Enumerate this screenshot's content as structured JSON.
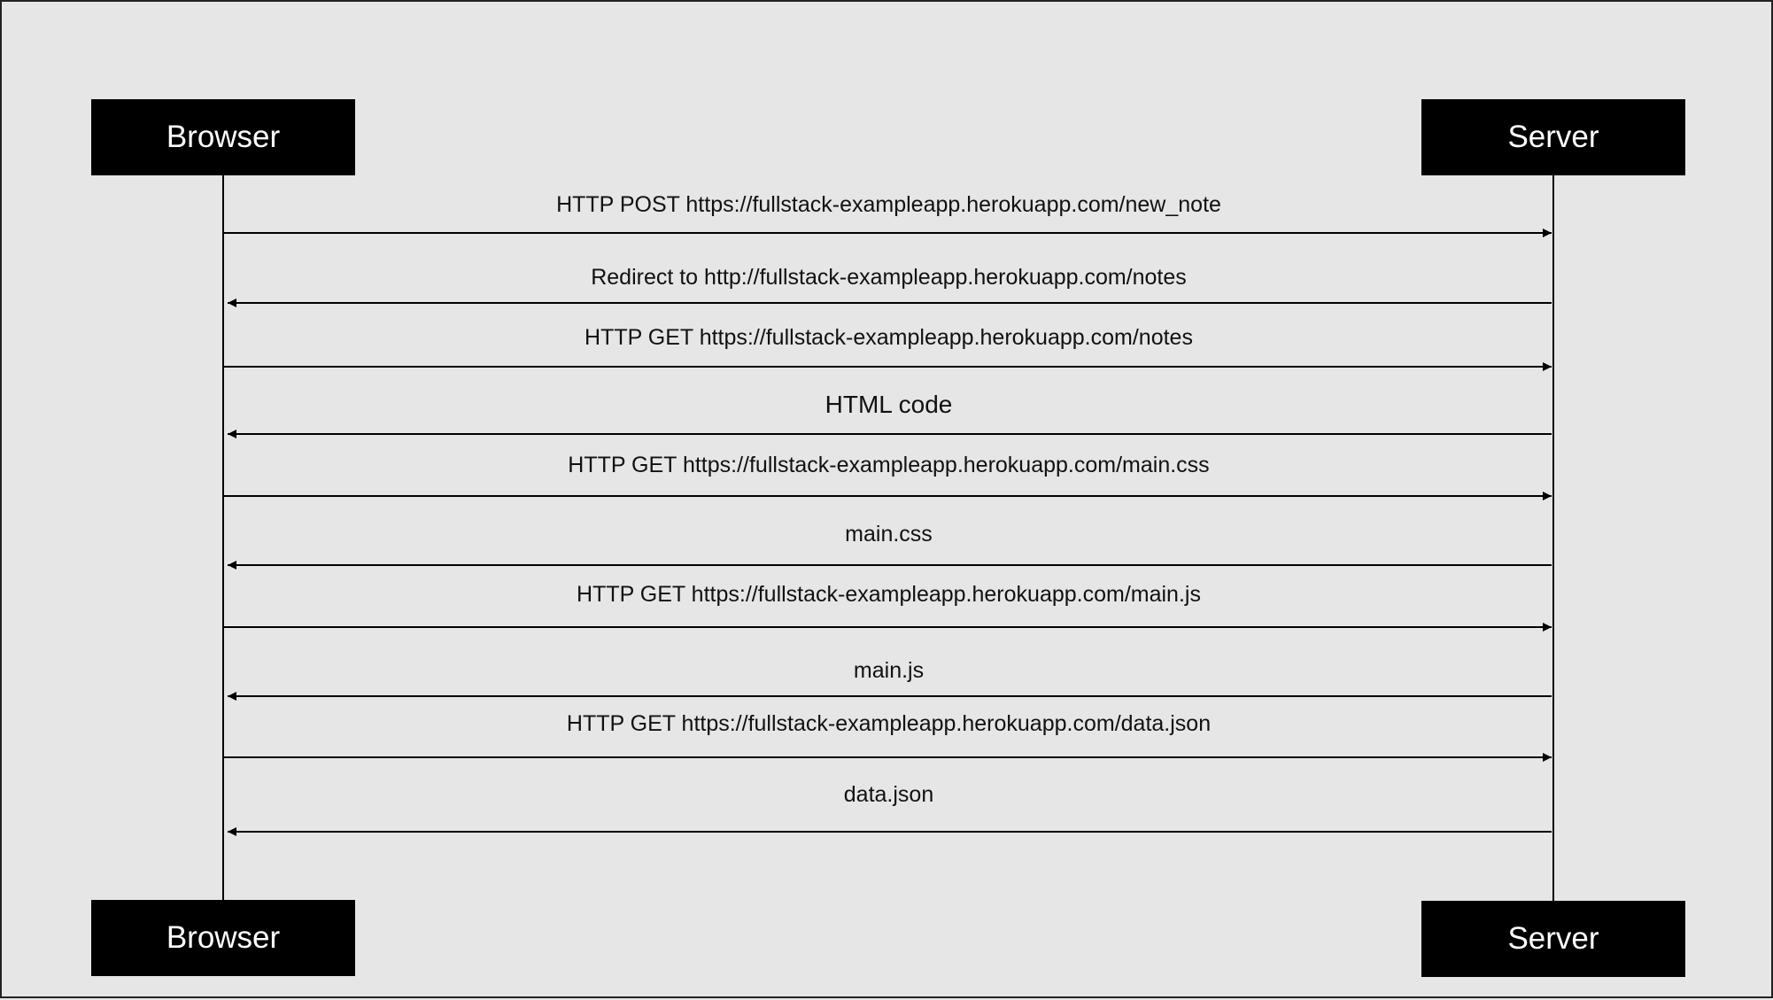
{
  "participants": {
    "left": "Browser",
    "right": "Server"
  },
  "messages": [
    {
      "label": "HTTP POST https://fullstack-exampleapp.herokuapp.com/new_note",
      "direction": "to-server"
    },
    {
      "label": "Redirect to http://fullstack-exampleapp.herokuapp.com/notes",
      "direction": "to-browser"
    },
    {
      "label": "HTTP GET https://fullstack-exampleapp.herokuapp.com/notes",
      "direction": "to-server"
    },
    {
      "label": "HTML code",
      "direction": "to-browser"
    },
    {
      "label": "HTTP GET https://fullstack-exampleapp.herokuapp.com/main.css",
      "direction": "to-server"
    },
    {
      "label": "main.css",
      "direction": "to-browser"
    },
    {
      "label": "HTTP GET https://fullstack-exampleapp.herokuapp.com/main.js",
      "direction": "to-server"
    },
    {
      "label": "main.js",
      "direction": "to-browser"
    },
    {
      "label": "HTTP GET https://fullstack-exampleapp.herokuapp.com/data.json",
      "direction": "to-server"
    },
    {
      "label": "data.json",
      "direction": "to-browser"
    }
  ]
}
